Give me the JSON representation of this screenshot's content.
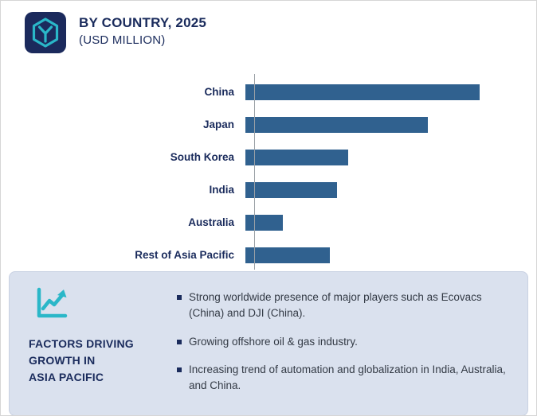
{
  "header": {
    "title": "BY COUNTRY, 2025",
    "subtitle": "(USD MILLION)"
  },
  "colors": {
    "navy": "#1a2b5c",
    "bar": "#30618f",
    "teal": "#2ab7c8",
    "panel_bg": "#dae1ee",
    "body_text": "#333a45",
    "axis": "#9aa0a6"
  },
  "chart_data": {
    "type": "bar",
    "orientation": "horizontal",
    "title": "BY COUNTRY, 2025 (USD MILLION)",
    "categories": [
      "China",
      "Japan",
      "South Korea",
      "India",
      "Australia",
      "Rest of Asia Pacific"
    ],
    "values": [
      100,
      78,
      44,
      39,
      16,
      36
    ],
    "xlabel": "",
    "ylabel": "",
    "xlim": [
      0,
      100
    ],
    "grid": false,
    "legend": false,
    "value_axis_labels_visible": false
  },
  "panel": {
    "heading": "FACTORS DRIVING\nGROWTH IN\nASIA PACIFIC",
    "icon": "line-chart-icon",
    "bullets": [
      "Strong worldwide presence of major players such as Ecovacs (China) and DJI (China).",
      "Growing offshore oil & gas industry.",
      "Increasing trend of automation and globalization in India, Australia, and China."
    ]
  }
}
